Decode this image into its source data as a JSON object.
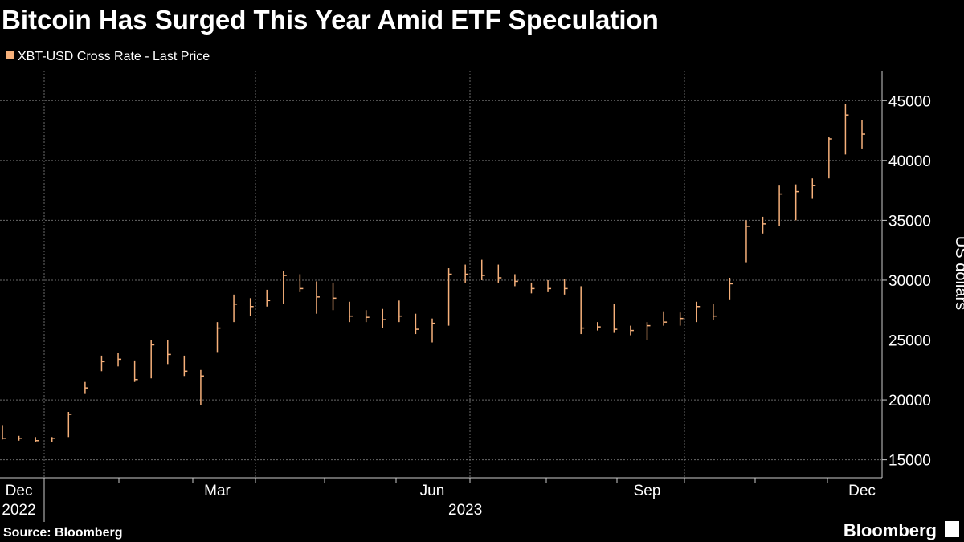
{
  "chart_data": {
    "type": "hlc",
    "title": "Bitcoin Has Surged This Year Amid ETF Speculation",
    "series_name": "XBT-USD Cross Rate - Last Price",
    "color": "#f6b07a",
    "y_label": "US dollars",
    "source": "Source: Bloomberg",
    "brand": "Bloomberg",
    "categories": [
      null,
      "Dec",
      null,
      null,
      null,
      null,
      null,
      null,
      null,
      null,
      null,
      null,
      null,
      "Mar",
      null,
      null,
      null,
      null,
      null,
      null,
      null,
      null,
      null,
      null,
      null,
      null,
      "Jun",
      null,
      null,
      null,
      null,
      null,
      null,
      null,
      null,
      null,
      null,
      null,
      null,
      "Sep",
      null,
      null,
      null,
      null,
      null,
      null,
      null,
      null,
      null,
      null,
      null,
      null,
      "Dec"
    ],
    "categories2": [
      null,
      "2022",
      null,
      null,
      null,
      null,
      null,
      null,
      null,
      null,
      null,
      null,
      null,
      null,
      null,
      null,
      null,
      null,
      null,
      null,
      null,
      null,
      null,
      null,
      null,
      null,
      null,
      null,
      "2023",
      null,
      null,
      null,
      null,
      null,
      null,
      null,
      null,
      null,
      null,
      null,
      null,
      null,
      null,
      null,
      null,
      null,
      null,
      null,
      null,
      null,
      null,
      null,
      null
    ],
    "high": [
      17900,
      17000,
      16900,
      16900,
      19000,
      21500,
      23700,
      23900,
      23300,
      25000,
      25000,
      23700,
      22500,
      26500,
      28800,
      28500,
      29200,
      30800,
      30500,
      29900,
      29800,
      28200,
      27500,
      27600,
      28300,
      27200,
      26800,
      31000,
      31300,
      31700,
      31300,
      30500,
      29800,
      30000,
      30100,
      29500,
      26500,
      28000,
      26200,
      26500,
      27400,
      27300,
      28200,
      28000,
      30200,
      35000,
      35300,
      37900,
      38000,
      38500,
      42000,
      44700,
      43400
    ],
    "low": [
      16700,
      16600,
      16500,
      16500,
      16900,
      20500,
      22400,
      22800,
      21500,
      21800,
      23000,
      22000,
      19600,
      24000,
      26500,
      27000,
      27800,
      28000,
      29000,
      27200,
      27500,
      26500,
      26500,
      26000,
      26500,
      25500,
      24800,
      26200,
      29800,
      30000,
      29800,
      29500,
      28900,
      29000,
      28800,
      25500,
      25800,
      25600,
      25400,
      25000,
      26200,
      26200,
      26500,
      26700,
      28400,
      31500,
      33900,
      34500,
      35000,
      36800,
      38500,
      40500,
      41000
    ],
    "close": [
      16800,
      16800,
      16600,
      16800,
      18800,
      21000,
      23200,
      23400,
      21700,
      24600,
      23800,
      22400,
      22000,
      26000,
      28000,
      27800,
      28300,
      30400,
      29300,
      28600,
      28500,
      27000,
      26900,
      26700,
      27000,
      25900,
      26400,
      30500,
      30500,
      30400,
      30200,
      29900,
      29300,
      29300,
      29300,
      26000,
      26100,
      25900,
      25800,
      26200,
      26500,
      26800,
      27800,
      27000,
      29700,
      34500,
      34700,
      37200,
      37400,
      37900,
      41800,
      43800,
      42200
    ],
    "ylim": [
      13500,
      47500
    ],
    "yticks": [
      15000,
      20000,
      25000,
      30000,
      35000,
      40000,
      45000
    ],
    "grid": true
  }
}
